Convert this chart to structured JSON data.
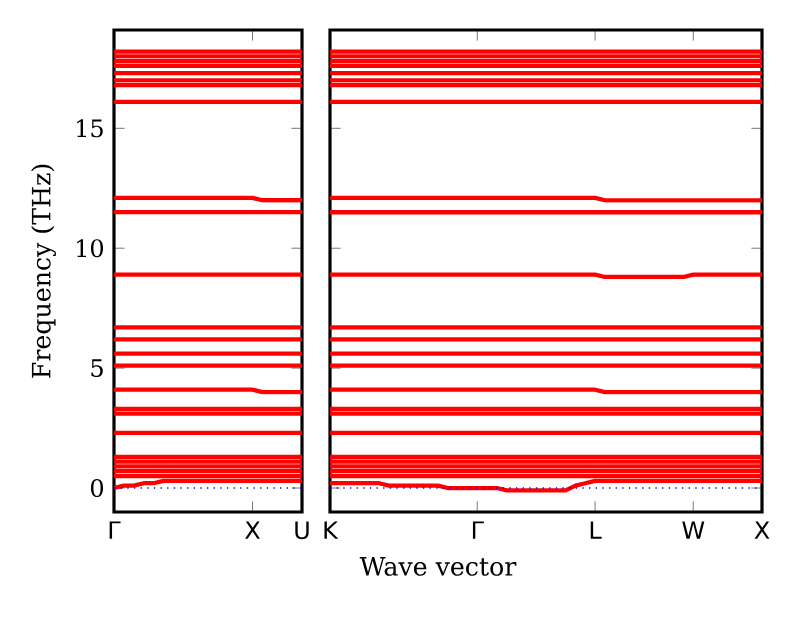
{
  "chart_data": [
    {
      "type": "line",
      "ylabel": "Frequency (THz)",
      "ylim": [
        -1,
        19.1
      ],
      "categories": [
        "Γ",
        null,
        null,
        null,
        null,
        null,
        null,
        null,
        null,
        null,
        null,
        null,
        null,
        null,
        "X",
        null,
        null,
        null,
        null,
        "U"
      ],
      "yticks": [
        0,
        5,
        10,
        15
      ],
      "ref_lines": [
        {
          "axis": "y",
          "value": 0,
          "color": "#0000ff",
          "line_style": "dotted"
        }
      ],
      "series": [
        {
          "color": "#ff0000",
          "values": [
            18.2,
            18.2,
            18.2,
            18.2,
            18.2,
            18.2,
            18.2,
            18.2,
            18.2,
            18.2,
            18.2,
            18.2,
            18.2,
            18.2,
            18.2,
            18.2,
            18.2,
            18.2,
            18.2,
            18.2
          ]
        },
        {
          "color": "#ff0000",
          "values": [
            18.0,
            18.0,
            18.0,
            18.0,
            18.0,
            18.0,
            18.0,
            18.0,
            18.0,
            18.0,
            18.0,
            18.0,
            18.0,
            18.0,
            18.0,
            18.0,
            18.0,
            18.0,
            18.0,
            18.0
          ]
        },
        {
          "color": "#ff0000",
          "values": [
            17.8,
            17.8,
            17.8,
            17.8,
            17.8,
            17.8,
            17.8,
            17.8,
            17.8,
            17.8,
            17.8,
            17.8,
            17.8,
            17.8,
            17.8,
            17.8,
            17.8,
            17.8,
            17.8,
            17.8
          ]
        },
        {
          "color": "#ff0000",
          "values": [
            17.6,
            17.6,
            17.6,
            17.6,
            17.6,
            17.6,
            17.6,
            17.6,
            17.6,
            17.6,
            17.6,
            17.6,
            17.6,
            17.6,
            17.6,
            17.6,
            17.6,
            17.6,
            17.6,
            17.6
          ]
        },
        {
          "color": "#ff0000",
          "values": [
            17.3,
            17.3,
            17.3,
            17.3,
            17.3,
            17.3,
            17.3,
            17.3,
            17.3,
            17.3,
            17.3,
            17.3,
            17.3,
            17.3,
            17.3,
            17.3,
            17.3,
            17.3,
            17.3,
            17.3
          ]
        },
        {
          "color": "#ff0000",
          "values": [
            17.0,
            17.0,
            17.0,
            17.0,
            17.0,
            17.0,
            17.0,
            17.0,
            17.0,
            17.0,
            17.0,
            17.0,
            17.0,
            17.0,
            17.0,
            17.0,
            17.0,
            17.0,
            17.0,
            17.0
          ]
        },
        {
          "color": "#ff0000",
          "values": [
            16.8,
            16.8,
            16.8,
            16.8,
            16.8,
            16.8,
            16.8,
            16.8,
            16.8,
            16.8,
            16.8,
            16.8,
            16.8,
            16.8,
            16.8,
            16.8,
            16.8,
            16.8,
            16.8,
            16.8
          ]
        },
        {
          "color": "#ff0000",
          "values": [
            16.1,
            16.1,
            16.1,
            16.1,
            16.1,
            16.1,
            16.1,
            16.1,
            16.1,
            16.1,
            16.1,
            16.1,
            16.1,
            16.1,
            16.1,
            16.1,
            16.1,
            16.1,
            16.1,
            16.1
          ]
        },
        {
          "color": "#ff0000",
          "values": [
            12.1,
            12.1,
            12.1,
            12.1,
            12.1,
            12.1,
            12.1,
            12.1,
            12.1,
            12.1,
            12.1,
            12.1,
            12.1,
            12.1,
            12.1,
            12.0,
            12.0,
            12.0,
            12.0,
            12.0
          ]
        },
        {
          "color": "#ff0000",
          "values": [
            11.5,
            11.5,
            11.5,
            11.5,
            11.5,
            11.5,
            11.5,
            11.5,
            11.5,
            11.5,
            11.5,
            11.5,
            11.5,
            11.5,
            11.5,
            11.5,
            11.5,
            11.5,
            11.5,
            11.5
          ]
        },
        {
          "color": "#ff0000",
          "values": [
            8.9,
            8.9,
            8.9,
            8.9,
            8.9,
            8.9,
            8.9,
            8.9,
            8.9,
            8.9,
            8.9,
            8.9,
            8.9,
            8.9,
            8.9,
            8.9,
            8.9,
            8.9,
            8.9,
            8.9
          ]
        },
        {
          "color": "#ff0000",
          "values": [
            6.7,
            6.7,
            6.7,
            6.7,
            6.7,
            6.7,
            6.7,
            6.7,
            6.7,
            6.7,
            6.7,
            6.7,
            6.7,
            6.7,
            6.7,
            6.7,
            6.7,
            6.7,
            6.7,
            6.7
          ]
        },
        {
          "color": "#ff0000",
          "values": [
            6.2,
            6.2,
            6.2,
            6.2,
            6.2,
            6.2,
            6.2,
            6.2,
            6.2,
            6.2,
            6.2,
            6.2,
            6.2,
            6.2,
            6.2,
            6.2,
            6.2,
            6.2,
            6.2,
            6.2
          ]
        },
        {
          "color": "#ff0000",
          "values": [
            5.6,
            5.6,
            5.6,
            5.6,
            5.6,
            5.6,
            5.6,
            5.6,
            5.6,
            5.6,
            5.6,
            5.6,
            5.6,
            5.6,
            5.6,
            5.6,
            5.6,
            5.6,
            5.6,
            5.6
          ]
        },
        {
          "color": "#ff0000",
          "values": [
            5.1,
            5.1,
            5.1,
            5.1,
            5.1,
            5.1,
            5.1,
            5.1,
            5.1,
            5.1,
            5.1,
            5.1,
            5.1,
            5.1,
            5.1,
            5.1,
            5.1,
            5.1,
            5.1,
            5.1
          ]
        },
        {
          "color": "#ff0000",
          "values": [
            4.1,
            4.1,
            4.1,
            4.1,
            4.1,
            4.1,
            4.1,
            4.1,
            4.1,
            4.1,
            4.1,
            4.1,
            4.1,
            4.1,
            4.1,
            4.0,
            4.0,
            4.0,
            4.0,
            4.0
          ]
        },
        {
          "color": "#ff0000",
          "values": [
            3.3,
            3.3,
            3.3,
            3.3,
            3.3,
            3.3,
            3.3,
            3.3,
            3.3,
            3.3,
            3.3,
            3.3,
            3.3,
            3.3,
            3.3,
            3.3,
            3.3,
            3.3,
            3.3,
            3.3
          ]
        },
        {
          "color": "#ff0000",
          "values": [
            3.1,
            3.1,
            3.1,
            3.1,
            3.1,
            3.1,
            3.1,
            3.1,
            3.1,
            3.1,
            3.1,
            3.1,
            3.1,
            3.1,
            3.1,
            3.1,
            3.1,
            3.1,
            3.1,
            3.1
          ]
        },
        {
          "color": "#ff0000",
          "values": [
            2.3,
            2.3,
            2.3,
            2.3,
            2.3,
            2.3,
            2.3,
            2.3,
            2.3,
            2.3,
            2.3,
            2.3,
            2.3,
            2.3,
            2.3,
            2.3,
            2.3,
            2.3,
            2.3,
            2.3
          ]
        },
        {
          "color": "#ff0000",
          "values": [
            1.3,
            1.3,
            1.3,
            1.3,
            1.3,
            1.3,
            1.3,
            1.3,
            1.3,
            1.3,
            1.3,
            1.3,
            1.3,
            1.3,
            1.3,
            1.3,
            1.3,
            1.3,
            1.3,
            1.3
          ]
        },
        {
          "color": "#ff0000",
          "values": [
            1.1,
            1.1,
            1.1,
            1.1,
            1.1,
            1.1,
            1.1,
            1.1,
            1.1,
            1.1,
            1.1,
            1.1,
            1.1,
            1.1,
            1.1,
            1.1,
            1.1,
            1.1,
            1.1,
            1.1
          ]
        },
        {
          "color": "#ff0000",
          "values": [
            0.9,
            0.9,
            0.9,
            0.9,
            0.9,
            0.9,
            0.9,
            0.9,
            0.9,
            0.9,
            0.9,
            0.9,
            0.9,
            0.9,
            0.9,
            0.9,
            0.9,
            0.9,
            0.9,
            0.9
          ]
        },
        {
          "color": "#ff0000",
          "values": [
            0.7,
            0.7,
            0.7,
            0.7,
            0.7,
            0.7,
            0.7,
            0.7,
            0.7,
            0.7,
            0.7,
            0.7,
            0.7,
            0.7,
            0.7,
            0.7,
            0.7,
            0.7,
            0.7,
            0.7
          ]
        },
        {
          "color": "#ff0000",
          "values": [
            0.5,
            0.5,
            0.5,
            0.5,
            0.5,
            0.5,
            0.5,
            0.5,
            0.5,
            0.5,
            0.5,
            0.5,
            0.5,
            0.5,
            0.5,
            0.5,
            0.5,
            0.5,
            0.5,
            0.5
          ]
        },
        {
          "color": "#ff0000",
          "values": [
            0.0,
            0.1,
            0.1,
            0.2,
            0.2,
            0.3,
            0.3,
            0.3,
            0.3,
            0.3,
            0.3,
            0.3,
            0.3,
            0.3,
            0.3,
            0.3,
            0.3,
            0.3,
            0.3,
            0.3
          ]
        }
      ]
    },
    {
      "type": "line",
      "xlabel": "Wave vector",
      "tick_labels": "x",
      "ylim": [
        -1,
        19.1
      ],
      "categories": [
        "K",
        null,
        null,
        null,
        null,
        null,
        null,
        null,
        null,
        null,
        null,
        null,
        null,
        null,
        null,
        "Γ",
        null,
        null,
        null,
        null,
        null,
        null,
        null,
        null,
        null,
        null,
        null,
        "L",
        null,
        null,
        null,
        null,
        null,
        null,
        null,
        null,
        null,
        "W",
        null,
        null,
        null,
        null,
        null,
        null,
        "X"
      ],
      "yticks": [
        0,
        5,
        10,
        15
      ],
      "ref_lines": [
        {
          "axis": "y",
          "value": 0,
          "color": "#0000ff",
          "line_style": "dotted"
        }
      ],
      "series": [
        {
          "color": "#ff0000",
          "values": [
            18.2,
            18.2,
            18.2,
            18.2,
            18.2,
            18.2,
            18.2,
            18.2,
            18.2,
            18.2,
            18.2,
            18.2,
            18.2,
            18.2,
            18.2,
            18.2,
            18.2,
            18.2,
            18.2,
            18.2,
            18.2,
            18.2,
            18.2,
            18.2,
            18.2,
            18.2,
            18.2,
            18.2,
            18.2,
            18.2,
            18.2,
            18.2,
            18.2,
            18.2,
            18.2,
            18.2,
            18.2,
            18.2,
            18.2,
            18.2,
            18.2,
            18.2,
            18.2,
            18.2,
            18.2
          ]
        },
        {
          "color": "#ff0000",
          "values": [
            18.0,
            18.0,
            18.0,
            18.0,
            18.0,
            18.0,
            18.0,
            18.0,
            18.0,
            18.0,
            18.0,
            18.0,
            18.0,
            18.0,
            18.0,
            18.0,
            18.0,
            18.0,
            18.0,
            18.0,
            18.0,
            18.0,
            18.0,
            18.0,
            18.0,
            18.0,
            18.0,
            18.0,
            18.0,
            18.0,
            18.0,
            18.0,
            18.0,
            18.0,
            18.0,
            18.0,
            18.0,
            18.0,
            18.0,
            18.0,
            18.0,
            18.0,
            18.0,
            18.0,
            18.0
          ]
        },
        {
          "color": "#ff0000",
          "values": [
            17.8,
            17.8,
            17.8,
            17.8,
            17.8,
            17.8,
            17.8,
            17.8,
            17.8,
            17.8,
            17.8,
            17.8,
            17.8,
            17.8,
            17.8,
            17.8,
            17.8,
            17.8,
            17.8,
            17.8,
            17.8,
            17.8,
            17.8,
            17.8,
            17.8,
            17.8,
            17.8,
            17.8,
            17.8,
            17.8,
            17.8,
            17.8,
            17.8,
            17.8,
            17.8,
            17.8,
            17.8,
            17.8,
            17.8,
            17.8,
            17.8,
            17.8,
            17.8,
            17.8,
            17.8
          ]
        },
        {
          "color": "#ff0000",
          "values": [
            17.6,
            17.6,
            17.6,
            17.6,
            17.6,
            17.6,
            17.6,
            17.6,
            17.6,
            17.6,
            17.6,
            17.6,
            17.6,
            17.6,
            17.6,
            17.6,
            17.6,
            17.6,
            17.6,
            17.6,
            17.6,
            17.6,
            17.6,
            17.6,
            17.6,
            17.6,
            17.6,
            17.6,
            17.6,
            17.6,
            17.6,
            17.6,
            17.6,
            17.6,
            17.6,
            17.6,
            17.6,
            17.6,
            17.6,
            17.6,
            17.6,
            17.6,
            17.6,
            17.6,
            17.6
          ]
        },
        {
          "color": "#ff0000",
          "values": [
            17.3,
            17.3,
            17.3,
            17.3,
            17.3,
            17.3,
            17.3,
            17.3,
            17.3,
            17.3,
            17.3,
            17.3,
            17.3,
            17.3,
            17.3,
            17.3,
            17.3,
            17.3,
            17.3,
            17.3,
            17.3,
            17.3,
            17.3,
            17.3,
            17.3,
            17.3,
            17.3,
            17.3,
            17.3,
            17.3,
            17.3,
            17.3,
            17.3,
            17.3,
            17.3,
            17.3,
            17.3,
            17.3,
            17.3,
            17.3,
            17.3,
            17.3,
            17.3,
            17.3,
            17.3
          ]
        },
        {
          "color": "#ff0000",
          "values": [
            17.0,
            17.0,
            17.0,
            17.0,
            17.0,
            17.0,
            17.0,
            17.0,
            17.0,
            17.0,
            17.0,
            17.0,
            17.0,
            17.0,
            17.0,
            17.0,
            17.0,
            17.0,
            17.0,
            17.0,
            17.0,
            17.0,
            17.0,
            17.0,
            17.0,
            17.0,
            17.0,
            17.0,
            17.0,
            17.0,
            17.0,
            17.0,
            17.0,
            17.0,
            17.0,
            17.0,
            17.0,
            17.0,
            17.0,
            17.0,
            17.0,
            17.0,
            17.0,
            17.0,
            17.0
          ]
        },
        {
          "color": "#ff0000",
          "values": [
            16.8,
            16.8,
            16.8,
            16.8,
            16.8,
            16.8,
            16.8,
            16.8,
            16.8,
            16.8,
            16.8,
            16.8,
            16.8,
            16.8,
            16.8,
            16.8,
            16.8,
            16.8,
            16.8,
            16.8,
            16.8,
            16.8,
            16.8,
            16.8,
            16.8,
            16.8,
            16.8,
            16.8,
            16.8,
            16.8,
            16.8,
            16.8,
            16.8,
            16.8,
            16.8,
            16.8,
            16.8,
            16.8,
            16.8,
            16.8,
            16.8,
            16.8,
            16.8,
            16.8,
            16.8
          ]
        },
        {
          "color": "#ff0000",
          "values": [
            16.1,
            16.1,
            16.1,
            16.1,
            16.1,
            16.1,
            16.1,
            16.1,
            16.1,
            16.1,
            16.1,
            16.1,
            16.1,
            16.1,
            16.1,
            16.1,
            16.1,
            16.1,
            16.1,
            16.1,
            16.1,
            16.1,
            16.1,
            16.1,
            16.1,
            16.1,
            16.1,
            16.1,
            16.1,
            16.1,
            16.1,
            16.1,
            16.1,
            16.1,
            16.1,
            16.1,
            16.1,
            16.1,
            16.1,
            16.1,
            16.1,
            16.1,
            16.1,
            16.1,
            16.1
          ]
        },
        {
          "color": "#ff0000",
          "values": [
            12.1,
            12.1,
            12.1,
            12.1,
            12.1,
            12.1,
            12.1,
            12.1,
            12.1,
            12.1,
            12.1,
            12.1,
            12.1,
            12.1,
            12.1,
            12.1,
            12.1,
            12.1,
            12.1,
            12.1,
            12.1,
            12.1,
            12.1,
            12.1,
            12.1,
            12.1,
            12.1,
            12.1,
            12.0,
            12.0,
            12.0,
            12.0,
            12.0,
            12.0,
            12.0,
            12.0,
            12.0,
            12.0,
            12.0,
            12.0,
            12.0,
            12.0,
            12.0,
            12.0,
            12.0
          ]
        },
        {
          "color": "#ff0000",
          "values": [
            11.5,
            11.5,
            11.5,
            11.5,
            11.5,
            11.5,
            11.5,
            11.5,
            11.5,
            11.5,
            11.5,
            11.5,
            11.5,
            11.5,
            11.5,
            11.5,
            11.5,
            11.5,
            11.5,
            11.5,
            11.5,
            11.5,
            11.5,
            11.5,
            11.5,
            11.5,
            11.5,
            11.5,
            11.5,
            11.5,
            11.5,
            11.5,
            11.5,
            11.5,
            11.5,
            11.5,
            11.5,
            11.5,
            11.5,
            11.5,
            11.5,
            11.5,
            11.5,
            11.5,
            11.5
          ]
        },
        {
          "color": "#ff0000",
          "values": [
            8.9,
            8.9,
            8.9,
            8.9,
            8.9,
            8.9,
            8.9,
            8.9,
            8.9,
            8.9,
            8.9,
            8.9,
            8.9,
            8.9,
            8.9,
            8.9,
            8.9,
            8.9,
            8.9,
            8.9,
            8.9,
            8.9,
            8.9,
            8.9,
            8.9,
            8.9,
            8.9,
            8.9,
            8.8,
            8.8,
            8.8,
            8.8,
            8.8,
            8.8,
            8.8,
            8.8,
            8.8,
            8.9,
            8.9,
            8.9,
            8.9,
            8.9,
            8.9,
            8.9,
            8.9
          ]
        },
        {
          "color": "#ff0000",
          "values": [
            6.7,
            6.7,
            6.7,
            6.7,
            6.7,
            6.7,
            6.7,
            6.7,
            6.7,
            6.7,
            6.7,
            6.7,
            6.7,
            6.7,
            6.7,
            6.7,
            6.7,
            6.7,
            6.7,
            6.7,
            6.7,
            6.7,
            6.7,
            6.7,
            6.7,
            6.7,
            6.7,
            6.7,
            6.7,
            6.7,
            6.7,
            6.7,
            6.7,
            6.7,
            6.7,
            6.7,
            6.7,
            6.7,
            6.7,
            6.7,
            6.7,
            6.7,
            6.7,
            6.7,
            6.7
          ]
        },
        {
          "color": "#ff0000",
          "values": [
            6.2,
            6.2,
            6.2,
            6.2,
            6.2,
            6.2,
            6.2,
            6.2,
            6.2,
            6.2,
            6.2,
            6.2,
            6.2,
            6.2,
            6.2,
            6.2,
            6.2,
            6.2,
            6.2,
            6.2,
            6.2,
            6.2,
            6.2,
            6.2,
            6.2,
            6.2,
            6.2,
            6.2,
            6.2,
            6.2,
            6.2,
            6.2,
            6.2,
            6.2,
            6.2,
            6.2,
            6.2,
            6.2,
            6.2,
            6.2,
            6.2,
            6.2,
            6.2,
            6.2,
            6.2
          ]
        },
        {
          "color": "#ff0000",
          "values": [
            5.6,
            5.6,
            5.6,
            5.6,
            5.6,
            5.6,
            5.6,
            5.6,
            5.6,
            5.6,
            5.6,
            5.6,
            5.6,
            5.6,
            5.6,
            5.6,
            5.6,
            5.6,
            5.6,
            5.6,
            5.6,
            5.6,
            5.6,
            5.6,
            5.6,
            5.6,
            5.6,
            5.6,
            5.6,
            5.6,
            5.6,
            5.6,
            5.6,
            5.6,
            5.6,
            5.6,
            5.6,
            5.6,
            5.6,
            5.6,
            5.6,
            5.6,
            5.6,
            5.6,
            5.6
          ]
        },
        {
          "color": "#ff0000",
          "values": [
            5.1,
            5.1,
            5.1,
            5.1,
            5.1,
            5.1,
            5.1,
            5.1,
            5.1,
            5.1,
            5.1,
            5.1,
            5.1,
            5.1,
            5.1,
            5.1,
            5.1,
            5.1,
            5.1,
            5.1,
            5.1,
            5.1,
            5.1,
            5.1,
            5.1,
            5.1,
            5.1,
            5.1,
            5.1,
            5.1,
            5.1,
            5.1,
            5.1,
            5.1,
            5.1,
            5.1,
            5.1,
            5.1,
            5.1,
            5.1,
            5.1,
            5.1,
            5.1,
            5.1,
            5.1
          ]
        },
        {
          "color": "#ff0000",
          "values": [
            4.1,
            4.1,
            4.1,
            4.1,
            4.1,
            4.1,
            4.1,
            4.1,
            4.1,
            4.1,
            4.1,
            4.1,
            4.1,
            4.1,
            4.1,
            4.1,
            4.1,
            4.1,
            4.1,
            4.1,
            4.1,
            4.1,
            4.1,
            4.1,
            4.1,
            4.1,
            4.1,
            4.1,
            4.0,
            4.0,
            4.0,
            4.0,
            4.0,
            4.0,
            4.0,
            4.0,
            4.0,
            4.0,
            4.0,
            4.0,
            4.0,
            4.0,
            4.0,
            4.0,
            4.0
          ]
        },
        {
          "color": "#ff0000",
          "values": [
            3.3,
            3.3,
            3.3,
            3.3,
            3.3,
            3.3,
            3.3,
            3.3,
            3.3,
            3.3,
            3.3,
            3.3,
            3.3,
            3.3,
            3.3,
            3.3,
            3.3,
            3.3,
            3.3,
            3.3,
            3.3,
            3.3,
            3.3,
            3.3,
            3.3,
            3.3,
            3.3,
            3.3,
            3.3,
            3.3,
            3.3,
            3.3,
            3.3,
            3.3,
            3.3,
            3.3,
            3.3,
            3.3,
            3.3,
            3.3,
            3.3,
            3.3,
            3.3,
            3.3,
            3.3
          ]
        },
        {
          "color": "#ff0000",
          "values": [
            3.1,
            3.1,
            3.1,
            3.1,
            3.1,
            3.1,
            3.1,
            3.1,
            3.1,
            3.1,
            3.1,
            3.1,
            3.1,
            3.1,
            3.1,
            3.1,
            3.1,
            3.1,
            3.1,
            3.1,
            3.1,
            3.1,
            3.1,
            3.1,
            3.1,
            3.1,
            3.1,
            3.1,
            3.1,
            3.1,
            3.1,
            3.1,
            3.1,
            3.1,
            3.1,
            3.1,
            3.1,
            3.1,
            3.1,
            3.1,
            3.1,
            3.1,
            3.1,
            3.1,
            3.1
          ]
        },
        {
          "color": "#ff0000",
          "values": [
            2.3,
            2.3,
            2.3,
            2.3,
            2.3,
            2.3,
            2.3,
            2.3,
            2.3,
            2.3,
            2.3,
            2.3,
            2.3,
            2.3,
            2.3,
            2.3,
            2.3,
            2.3,
            2.3,
            2.3,
            2.3,
            2.3,
            2.3,
            2.3,
            2.3,
            2.3,
            2.3,
            2.3,
            2.3,
            2.3,
            2.3,
            2.3,
            2.3,
            2.3,
            2.3,
            2.3,
            2.3,
            2.3,
            2.3,
            2.3,
            2.3,
            2.3,
            2.3,
            2.3,
            2.3
          ]
        },
        {
          "color": "#ff0000",
          "values": [
            1.3,
            1.3,
            1.3,
            1.3,
            1.3,
            1.3,
            1.3,
            1.3,
            1.3,
            1.3,
            1.3,
            1.3,
            1.3,
            1.3,
            1.3,
            1.3,
            1.3,
            1.3,
            1.3,
            1.3,
            1.3,
            1.3,
            1.3,
            1.3,
            1.3,
            1.3,
            1.3,
            1.3,
            1.3,
            1.3,
            1.3,
            1.3,
            1.3,
            1.3,
            1.3,
            1.3,
            1.3,
            1.3,
            1.3,
            1.3,
            1.3,
            1.3,
            1.3,
            1.3,
            1.3
          ]
        },
        {
          "color": "#ff0000",
          "values": [
            1.1,
            1.1,
            1.1,
            1.1,
            1.1,
            1.1,
            1.1,
            1.1,
            1.1,
            1.1,
            1.1,
            1.1,
            1.1,
            1.1,
            1.1,
            1.1,
            1.1,
            1.1,
            1.1,
            1.1,
            1.1,
            1.1,
            1.1,
            1.1,
            1.1,
            1.1,
            1.1,
            1.1,
            1.1,
            1.1,
            1.1,
            1.1,
            1.1,
            1.1,
            1.1,
            1.1,
            1.1,
            1.1,
            1.1,
            1.1,
            1.1,
            1.1,
            1.1,
            1.1,
            1.1
          ]
        },
        {
          "color": "#ff0000",
          "values": [
            0.9,
            0.9,
            0.9,
            0.9,
            0.9,
            0.9,
            0.9,
            0.9,
            0.9,
            0.9,
            0.9,
            0.9,
            0.9,
            0.9,
            0.9,
            0.9,
            0.9,
            0.9,
            0.9,
            0.9,
            0.9,
            0.9,
            0.9,
            0.9,
            0.9,
            0.9,
            0.9,
            0.9,
            0.9,
            0.9,
            0.9,
            0.9,
            0.9,
            0.9,
            0.9,
            0.9,
            0.9,
            0.9,
            0.9,
            0.9,
            0.9,
            0.9,
            0.9,
            0.9,
            0.9
          ]
        },
        {
          "color": "#ff0000",
          "values": [
            0.7,
            0.7,
            0.7,
            0.7,
            0.7,
            0.7,
            0.7,
            0.7,
            0.7,
            0.7,
            0.7,
            0.7,
            0.7,
            0.7,
            0.7,
            0.7,
            0.7,
            0.7,
            0.7,
            0.7,
            0.7,
            0.7,
            0.7,
            0.7,
            0.7,
            0.7,
            0.7,
            0.7,
            0.7,
            0.7,
            0.7,
            0.7,
            0.7,
            0.7,
            0.7,
            0.7,
            0.7,
            0.7,
            0.7,
            0.7,
            0.7,
            0.7,
            0.7,
            0.7,
            0.7
          ]
        },
        {
          "color": "#ff0000",
          "values": [
            0.5,
            0.5,
            0.5,
            0.5,
            0.5,
            0.5,
            0.5,
            0.5,
            0.5,
            0.5,
            0.5,
            0.5,
            0.5,
            0.5,
            0.5,
            0.5,
            0.5,
            0.5,
            0.5,
            0.5,
            0.5,
            0.5,
            0.5,
            0.5,
            0.5,
            0.5,
            0.5,
            0.5,
            0.5,
            0.5,
            0.5,
            0.5,
            0.5,
            0.5,
            0.5,
            0.5,
            0.5,
            0.5,
            0.5,
            0.5,
            0.5,
            0.5,
            0.5,
            0.5,
            0.5
          ]
        },
        {
          "color": "#ff0000",
          "values": [
            0.2,
            0.2,
            0.2,
            0.2,
            0.2,
            0.2,
            0.1,
            0.1,
            0.1,
            0.1,
            0.1,
            0.1,
            0.0,
            0.0,
            0.0,
            0.0,
            0.0,
            0.0,
            -0.1,
            -0.1,
            -0.1,
            -0.1,
            -0.1,
            -0.1,
            -0.1,
            0.1,
            0.2,
            0.3,
            0.3,
            0.3,
            0.3,
            0.3,
            0.3,
            0.3,
            0.3,
            0.3,
            0.3,
            0.3,
            0.3,
            0.3,
            0.3,
            0.3,
            0.3,
            0.3,
            0.3
          ]
        }
      ]
    }
  ]
}
